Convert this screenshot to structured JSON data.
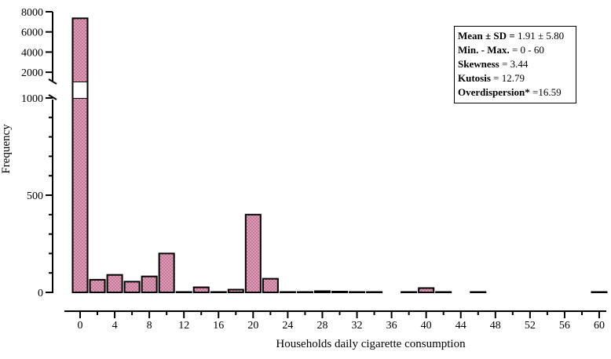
{
  "chart_data": {
    "type": "bar",
    "xlabel": "Households daily cigarette consumption",
    "ylabel": "Frequency",
    "x_ticks": [
      "0",
      "4",
      "8",
      "12",
      "16",
      "20",
      "24",
      "28",
      "32",
      "36",
      "40",
      "44",
      "48",
      "52",
      "56",
      "60"
    ],
    "y_ticks_lower": [
      "0",
      "500",
      "1000"
    ],
    "y_ticks_upper": [
      "2000",
      "4000",
      "6000",
      "8000"
    ],
    "y_axis_break": {
      "lower_range": [
        0,
        1000
      ],
      "upper_range": [
        1000,
        8000
      ]
    },
    "bar_color": "#c9789a",
    "bars": [
      {
        "x": 0,
        "value": 7350
      },
      {
        "x": 2,
        "value": 65
      },
      {
        "x": 4,
        "value": 90
      },
      {
        "x": 6,
        "value": 55
      },
      {
        "x": 8,
        "value": 82
      },
      {
        "x": 10,
        "value": 200
      },
      {
        "x": 12,
        "value": 2
      },
      {
        "x": 14,
        "value": 26
      },
      {
        "x": 16,
        "value": 2
      },
      {
        "x": 18,
        "value": 14
      },
      {
        "x": 20,
        "value": 400
      },
      {
        "x": 22,
        "value": 70
      },
      {
        "x": 24,
        "value": 2
      },
      {
        "x": 26,
        "value": 2
      },
      {
        "x": 28,
        "value": 6
      },
      {
        "x": 30,
        "value": 4
      },
      {
        "x": 32,
        "value": 2
      },
      {
        "x": 34,
        "value": 2
      },
      {
        "x": 38,
        "value": 2
      },
      {
        "x": 40,
        "value": 22
      },
      {
        "x": 42,
        "value": 2
      },
      {
        "x": 46,
        "value": 2
      },
      {
        "x": 60,
        "value": 2
      }
    ]
  },
  "stats": [
    {
      "label": "Mean ± SD =",
      "value": " 1.91 ± 5.80"
    },
    {
      "label": "Min. - Max.",
      "value": " = 0 - 60"
    },
    {
      "label": "Skewness",
      "value": " = 3.44"
    },
    {
      "label": "Kutosis",
      "value": " = 12.79"
    },
    {
      "label": "Overdispersion*",
      "value": " =16.59"
    }
  ]
}
